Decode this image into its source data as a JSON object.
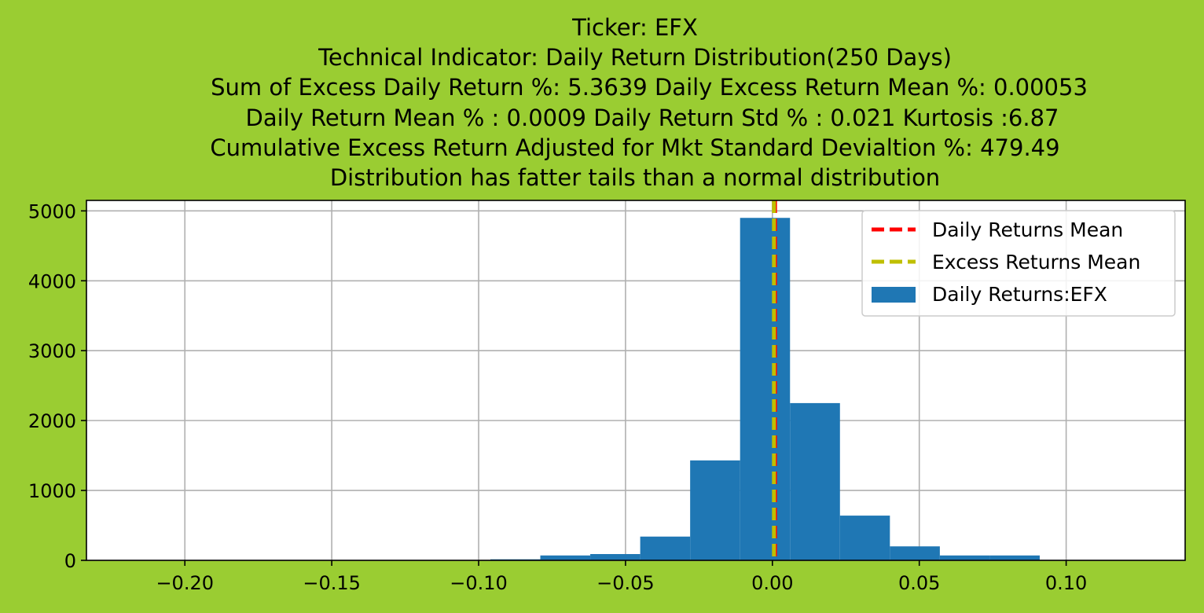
{
  "chart_data": {
    "type": "bar",
    "title_lines": [
      "Ticker: EFX",
      "Technical Indicator: Daily Return Distribution(250 Days)",
      "Sum of Excess Daily Return %: 5.3639   Daily Excess Return Mean %: 0.00053",
      "Daily Return Mean % : 0.0009    Daily Return Std % : 0.021  Kurtosis :6.87",
      "Cumulative Excess Return Adjusted for Mkt Standard Devialtion %: 479.49",
      "Distribution has fatter tails than a normal distribution"
    ],
    "xlabel": "",
    "ylabel": "",
    "xlim": [
      -0.2335,
      0.1405
    ],
    "ylim": [
      0,
      5150
    ],
    "xticks": [
      -0.2,
      -0.15,
      -0.1,
      -0.05,
      0.0,
      0.05,
      0.1
    ],
    "xtick_labels": [
      "−0.20",
      "−0.15",
      "−0.10",
      "−0.05",
      "0.00",
      "0.05",
      "0.10"
    ],
    "yticks": [
      0,
      1000,
      2000,
      3000,
      4000,
      5000
    ],
    "ytick_labels": [
      "0",
      "1000",
      "2000",
      "3000",
      "4000",
      "5000"
    ],
    "grid": true,
    "bins": [
      {
        "x0": -0.096,
        "x1": -0.079,
        "count": 15
      },
      {
        "x0": -0.079,
        "x1": -0.062,
        "count": 70
      },
      {
        "x0": -0.062,
        "x1": -0.045,
        "count": 90
      },
      {
        "x0": -0.045,
        "x1": -0.028,
        "count": 340
      },
      {
        "x0": -0.028,
        "x1": -0.011,
        "count": 1430
      },
      {
        "x0": -0.011,
        "x1": 0.006,
        "count": 4900
      },
      {
        "x0": 0.006,
        "x1": 0.023,
        "count": 2250
      },
      {
        "x0": 0.023,
        "x1": 0.04,
        "count": 640
      },
      {
        "x0": 0.04,
        "x1": 0.057,
        "count": 200
      },
      {
        "x0": 0.057,
        "x1": 0.074,
        "count": 70
      },
      {
        "x0": 0.074,
        "x1": 0.091,
        "count": 70
      }
    ],
    "mean_lines": [
      {
        "name": "Daily Returns Mean",
        "x": 0.0009,
        "color": "#ff0000"
      },
      {
        "name": "Excess Returns Mean",
        "x": 0.00053,
        "color": "#bfbf00"
      }
    ],
    "series": [
      {
        "name": "Daily Returns:EFX",
        "color": "#1f77b4"
      }
    ],
    "legend_position": "top-right",
    "colors": {
      "figure_background": "#9acd32",
      "axes_background": "#ffffff",
      "grid": "#b0b0b0",
      "bars": "#1f77b4"
    }
  }
}
